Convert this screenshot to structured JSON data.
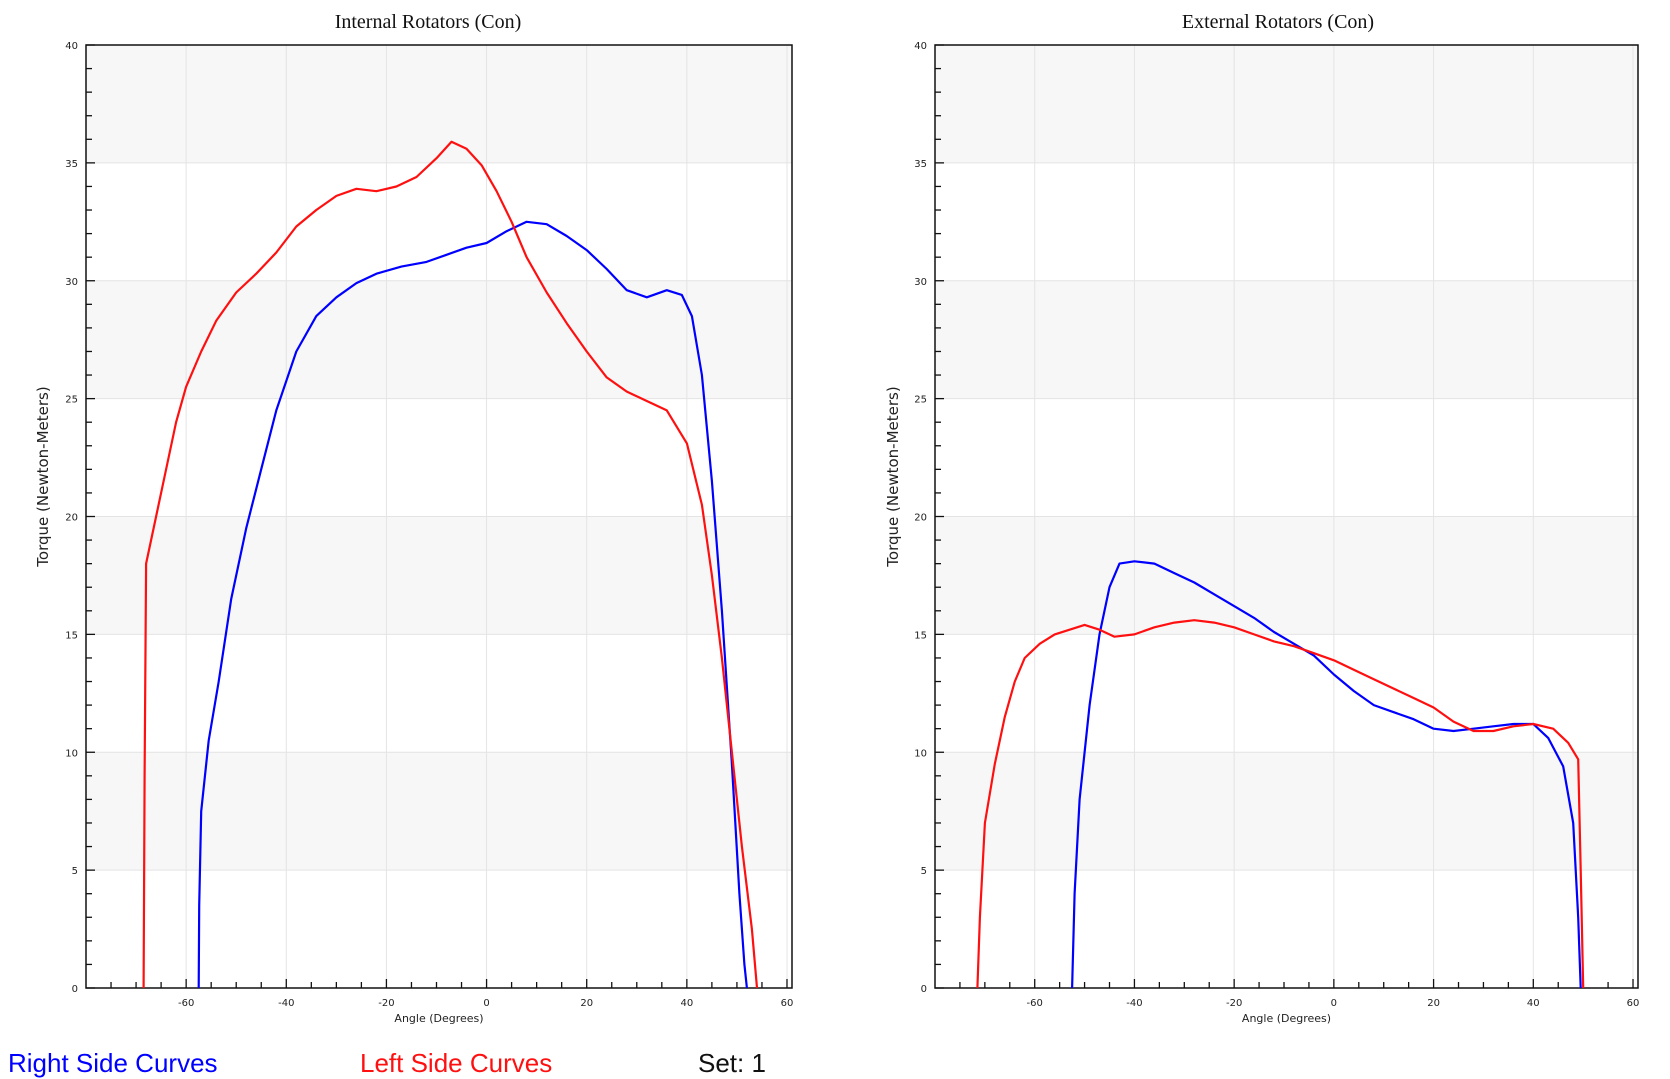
{
  "chart_data": [
    {
      "type": "line",
      "title": "Internal Rotators (Con)",
      "xlabel": "Angle (Degrees)",
      "ylabel": "Torque (Newton-Meters)",
      "xlim": [
        -80,
        61
      ],
      "ylim": [
        0,
        40
      ],
      "xticks": [
        -60,
        -40,
        -20,
        0,
        20,
        40,
        60
      ],
      "yticks": [
        0,
        5,
        10,
        15,
        20,
        25,
        30,
        35,
        40
      ],
      "grid": true,
      "bands": "alternating light gray",
      "series": [
        {
          "name": "",
          "color": "#0000ff",
          "points": [
            [
              -57.5,
              0
            ],
            [
              -57.4,
              3.5
            ],
            [
              -57,
              7.5
            ],
            [
              -55.5,
              10.5
            ],
            [
              -53.5,
              13
            ],
            [
              -51,
              16.5
            ],
            [
              -48,
              19.5
            ],
            [
              -45,
              22
            ],
            [
              -42,
              24.5
            ],
            [
              -38,
              27
            ],
            [
              -34,
              28.5
            ],
            [
              -30,
              29.3
            ],
            [
              -26,
              29.9
            ],
            [
              -22,
              30.3
            ],
            [
              -17,
              30.6
            ],
            [
              -12,
              30.8
            ],
            [
              -8,
              31.1
            ],
            [
              -4,
              31.4
            ],
            [
              0,
              31.6
            ],
            [
              4,
              32.1
            ],
            [
              8,
              32.5
            ],
            [
              12,
              32.4
            ],
            [
              16,
              31.9
            ],
            [
              20,
              31.3
            ],
            [
              24,
              30.5
            ],
            [
              28,
              29.6
            ],
            [
              32,
              29.3
            ],
            [
              36,
              29.6
            ],
            [
              39,
              29.4
            ],
            [
              41,
              28.5
            ],
            [
              43,
              26
            ],
            [
              45,
              21.5
            ],
            [
              47,
              16
            ],
            [
              49,
              9.5
            ],
            [
              50.5,
              4
            ],
            [
              51.5,
              1
            ],
            [
              52,
              0
            ]
          ]
        },
        {
          "name": "",
          "color": "#ff1010",
          "points": [
            [
              -68.5,
              0
            ],
            [
              -68.3,
              9
            ],
            [
              -68,
              18
            ],
            [
              -66,
              20
            ],
            [
              -64,
              22
            ],
            [
              -62,
              24
            ],
            [
              -60,
              25.5
            ],
            [
              -57,
              27
            ],
            [
              -54,
              28.3
            ],
            [
              -50,
              29.5
            ],
            [
              -46,
              30.3
            ],
            [
              -42,
              31.2
            ],
            [
              -38,
              32.3
            ],
            [
              -34,
              33
            ],
            [
              -30,
              33.6
            ],
            [
              -26,
              33.9
            ],
            [
              -22,
              33.8
            ],
            [
              -18,
              34
            ],
            [
              -14,
              34.4
            ],
            [
              -10,
              35.2
            ],
            [
              -7,
              35.9
            ],
            [
              -4,
              35.6
            ],
            [
              -1,
              34.9
            ],
            [
              2,
              33.8
            ],
            [
              5,
              32.5
            ],
            [
              8,
              31
            ],
            [
              12,
              29.5
            ],
            [
              16,
              28.2
            ],
            [
              20,
              27
            ],
            [
              24,
              25.9
            ],
            [
              28,
              25.3
            ],
            [
              32,
              24.9
            ],
            [
              36,
              24.5
            ],
            [
              40,
              23.1
            ],
            [
              43,
              20.5
            ],
            [
              45,
              17.5
            ],
            [
              47,
              14
            ],
            [
              49,
              10
            ],
            [
              51,
              6
            ],
            [
              53,
              2.5
            ],
            [
              54,
              0
            ]
          ]
        }
      ]
    },
    {
      "type": "line",
      "title": "External Rotators (Con)",
      "xlabel": "Angle (Degrees)",
      "ylabel": "Torque (Newton-Meters)",
      "xlim": [
        -80,
        61
      ],
      "ylim": [
        0,
        40
      ],
      "xticks": [
        -60,
        -40,
        -20,
        0,
        20,
        40,
        60
      ],
      "yticks": [
        0,
        5,
        10,
        15,
        20,
        25,
        30,
        35,
        40
      ],
      "grid": true,
      "bands": "alternating light gray",
      "series": [
        {
          "name": "",
          "color": "#0000ff",
          "points": [
            [
              -52.5,
              0
            ],
            [
              -52,
              4
            ],
            [
              -51,
              8
            ],
            [
              -49,
              12
            ],
            [
              -47,
              15
            ],
            [
              -45,
              17
            ],
            [
              -43,
              18
            ],
            [
              -40,
              18.1
            ],
            [
              -36,
              18
            ],
            [
              -32,
              17.6
            ],
            [
              -28,
              17.2
            ],
            [
              -24,
              16.7
            ],
            [
              -20,
              16.2
            ],
            [
              -16,
              15.7
            ],
            [
              -12,
              15.1
            ],
            [
              -8,
              14.6
            ],
            [
              -4,
              14.1
            ],
            [
              0,
              13.3
            ],
            [
              4,
              12.6
            ],
            [
              8,
              12
            ],
            [
              12,
              11.7
            ],
            [
              16,
              11.4
            ],
            [
              20,
              11
            ],
            [
              24,
              10.9
            ],
            [
              28,
              11
            ],
            [
              32,
              11.1
            ],
            [
              36,
              11.2
            ],
            [
              40,
              11.2
            ],
            [
              43,
              10.6
            ],
            [
              46,
              9.4
            ],
            [
              48,
              7
            ],
            [
              49,
              3
            ],
            [
              49.5,
              0
            ]
          ]
        },
        {
          "name": "",
          "color": "#ff1010",
          "points": [
            [
              -71.5,
              0
            ],
            [
              -71,
              3
            ],
            [
              -70,
              7
            ],
            [
              -68,
              9.5
            ],
            [
              -66,
              11.5
            ],
            [
              -64,
              13
            ],
            [
              -62,
              14
            ],
            [
              -59,
              14.6
            ],
            [
              -56,
              15
            ],
            [
              -53,
              15.2
            ],
            [
              -50,
              15.4
            ],
            [
              -47,
              15.2
            ],
            [
              -44,
              14.9
            ],
            [
              -40,
              15
            ],
            [
              -36,
              15.3
            ],
            [
              -32,
              15.5
            ],
            [
              -28,
              15.6
            ],
            [
              -24,
              15.5
            ],
            [
              -20,
              15.3
            ],
            [
              -16,
              15
            ],
            [
              -12,
              14.7
            ],
            [
              -8,
              14.5
            ],
            [
              -4,
              14.2
            ],
            [
              0,
              13.9
            ],
            [
              4,
              13.5
            ],
            [
              8,
              13.1
            ],
            [
              12,
              12.7
            ],
            [
              16,
              12.3
            ],
            [
              20,
              11.9
            ],
            [
              24,
              11.3
            ],
            [
              28,
              10.9
            ],
            [
              32,
              10.9
            ],
            [
              36,
              11.1
            ],
            [
              40,
              11.2
            ],
            [
              44,
              11
            ],
            [
              47,
              10.4
            ],
            [
              49,
              9.7
            ],
            [
              49.5,
              5
            ],
            [
              50,
              0
            ]
          ]
        }
      ]
    }
  ],
  "footer": {
    "right_legend": "Right Side Curves",
    "left_legend": "Left Side Curves",
    "set_label": "Set: 1"
  }
}
